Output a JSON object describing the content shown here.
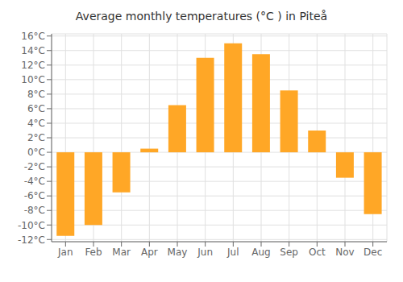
{
  "chart_data": {
    "type": "bar",
    "title": "Average monthly temperatures (°C ) in Piteå",
    "categories": [
      "Jan",
      "Feb",
      "Mar",
      "Apr",
      "May",
      "Jun",
      "Jul",
      "Aug",
      "Sep",
      "Oct",
      "Nov",
      "Dec"
    ],
    "values": [
      -11.5,
      -10.0,
      -5.5,
      0.5,
      6.5,
      13.0,
      15.0,
      13.5,
      8.5,
      3.0,
      -3.5,
      -8.5
    ],
    "color": "#FFA726",
    "ylim": [
      -12.3,
      16.3
    ],
    "yticks": [
      {
        "value": -12,
        "label": "-12°C"
      },
      {
        "value": -10,
        "label": "-10°C"
      },
      {
        "value": -8,
        "label": "-8°C"
      },
      {
        "value": -6,
        "label": "-6°C"
      },
      {
        "value": -4,
        "label": "-4°C"
      },
      {
        "value": -2,
        "label": "-2°C"
      },
      {
        "value": 0,
        "label": "0°C"
      },
      {
        "value": 2,
        "label": "2°C"
      },
      {
        "value": 4,
        "label": "4°C"
      },
      {
        "value": 6,
        "label": "6°C"
      },
      {
        "value": 8,
        "label": "8°C"
      },
      {
        "value": 10,
        "label": "10°C"
      },
      {
        "value": 12,
        "label": "12°C"
      },
      {
        "value": 14,
        "label": "14°C"
      },
      {
        "value": 16,
        "label": "16°C"
      }
    ],
    "grid": true
  }
}
